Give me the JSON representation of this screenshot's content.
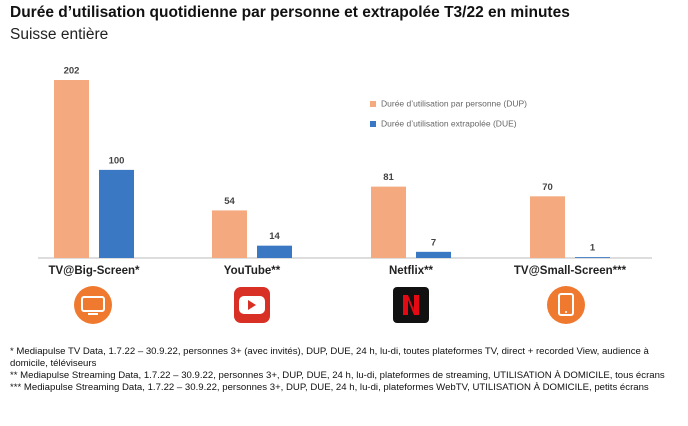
{
  "chart_data": {
    "type": "bar",
    "title": "Durée d’utilisation quotidienne par personne et extrapolée T3/22 en minutes",
    "subtitle": "Suisse entière",
    "categories": [
      "TV@Big-Screen*",
      "YouTube**",
      "Netflix**",
      "TV@Small-Screen***"
    ],
    "series": [
      {
        "name": "Durée d’utilisation par personne (DUP)",
        "color": "#f4a97e",
        "values": [
          202,
          54,
          81,
          70
        ]
      },
      {
        "name": "Durée d’utilisation extrapolée (DUE)",
        "color": "#3a78c3",
        "values": [
          100,
          14,
          7,
          1
        ]
      }
    ],
    "notes": [
      "* Mediapulse TV Data, 1.7.22 – 30.9.22, personnes 3+ (avec invités), DUP, DUE, 24 h, lu-di, toutes plateformes TV, direct + recorded View, audience à domicile, téléviseurs",
      "** Mediapulse Streaming Data, 1.7.22 – 30.9.22, personnes 3+, DUP, DUE, 24 h, lu-di, plateformes de streaming, UTILISATION À DOMICILE, tous écrans",
      "*** Mediapulse Streaming Data, 1.7.22 – 30.9.22, personnes 3+, DUP, DUE, 24 h, lu-di, plateformes WebTV, UTILISATION À DOMICILE, petits écrans"
    ]
  }
}
